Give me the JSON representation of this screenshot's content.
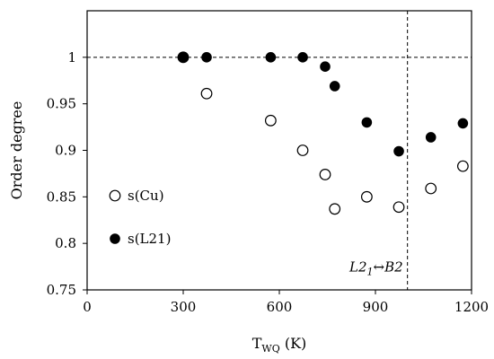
{
  "chart_data": {
    "type": "scatter",
    "xlabel": "T",
    "xlabel_sub": "WQ",
    "xlabel_unit": " (K)",
    "ylabel": "Order degree",
    "xlim": [
      0,
      1200
    ],
    "ylim": [
      0.75,
      1.05
    ],
    "xticks": [
      0,
      300,
      600,
      900,
      1200
    ],
    "yticks": [
      0.75,
      0.8,
      0.85,
      0.9,
      0.95,
      1
    ],
    "ytick_labels": [
      "0.75",
      "0.8",
      "0.85",
      "0.9",
      "0.95",
      "1"
    ],
    "grid": false,
    "legend_position": "bottom-left",
    "reference_lines": {
      "horizontal_y": 1.0,
      "vertical_x": 1000
    },
    "annotation": {
      "text_parts": [
        "L2",
        "1",
        "↔B2"
      ],
      "x": 1000,
      "y": 0.77
    },
    "series": [
      {
        "name": "s(Cu)",
        "marker": "open-circle",
        "x": [
          300,
          373,
          573,
          673,
          743,
          773,
          873,
          973,
          1073,
          1173
        ],
        "y": [
          1.0,
          0.961,
          0.932,
          0.9,
          0.874,
          0.837,
          0.85,
          0.839,
          0.859,
          0.883
        ]
      },
      {
        "name": "s(L21)",
        "marker": "filled-circle",
        "x": [
          300,
          373,
          573,
          673,
          743,
          773,
          873,
          973,
          1073,
          1173
        ],
        "y": [
          1.0,
          1.0,
          1.0,
          1.0,
          0.99,
          0.969,
          0.93,
          0.899,
          0.914,
          0.929
        ]
      }
    ]
  }
}
